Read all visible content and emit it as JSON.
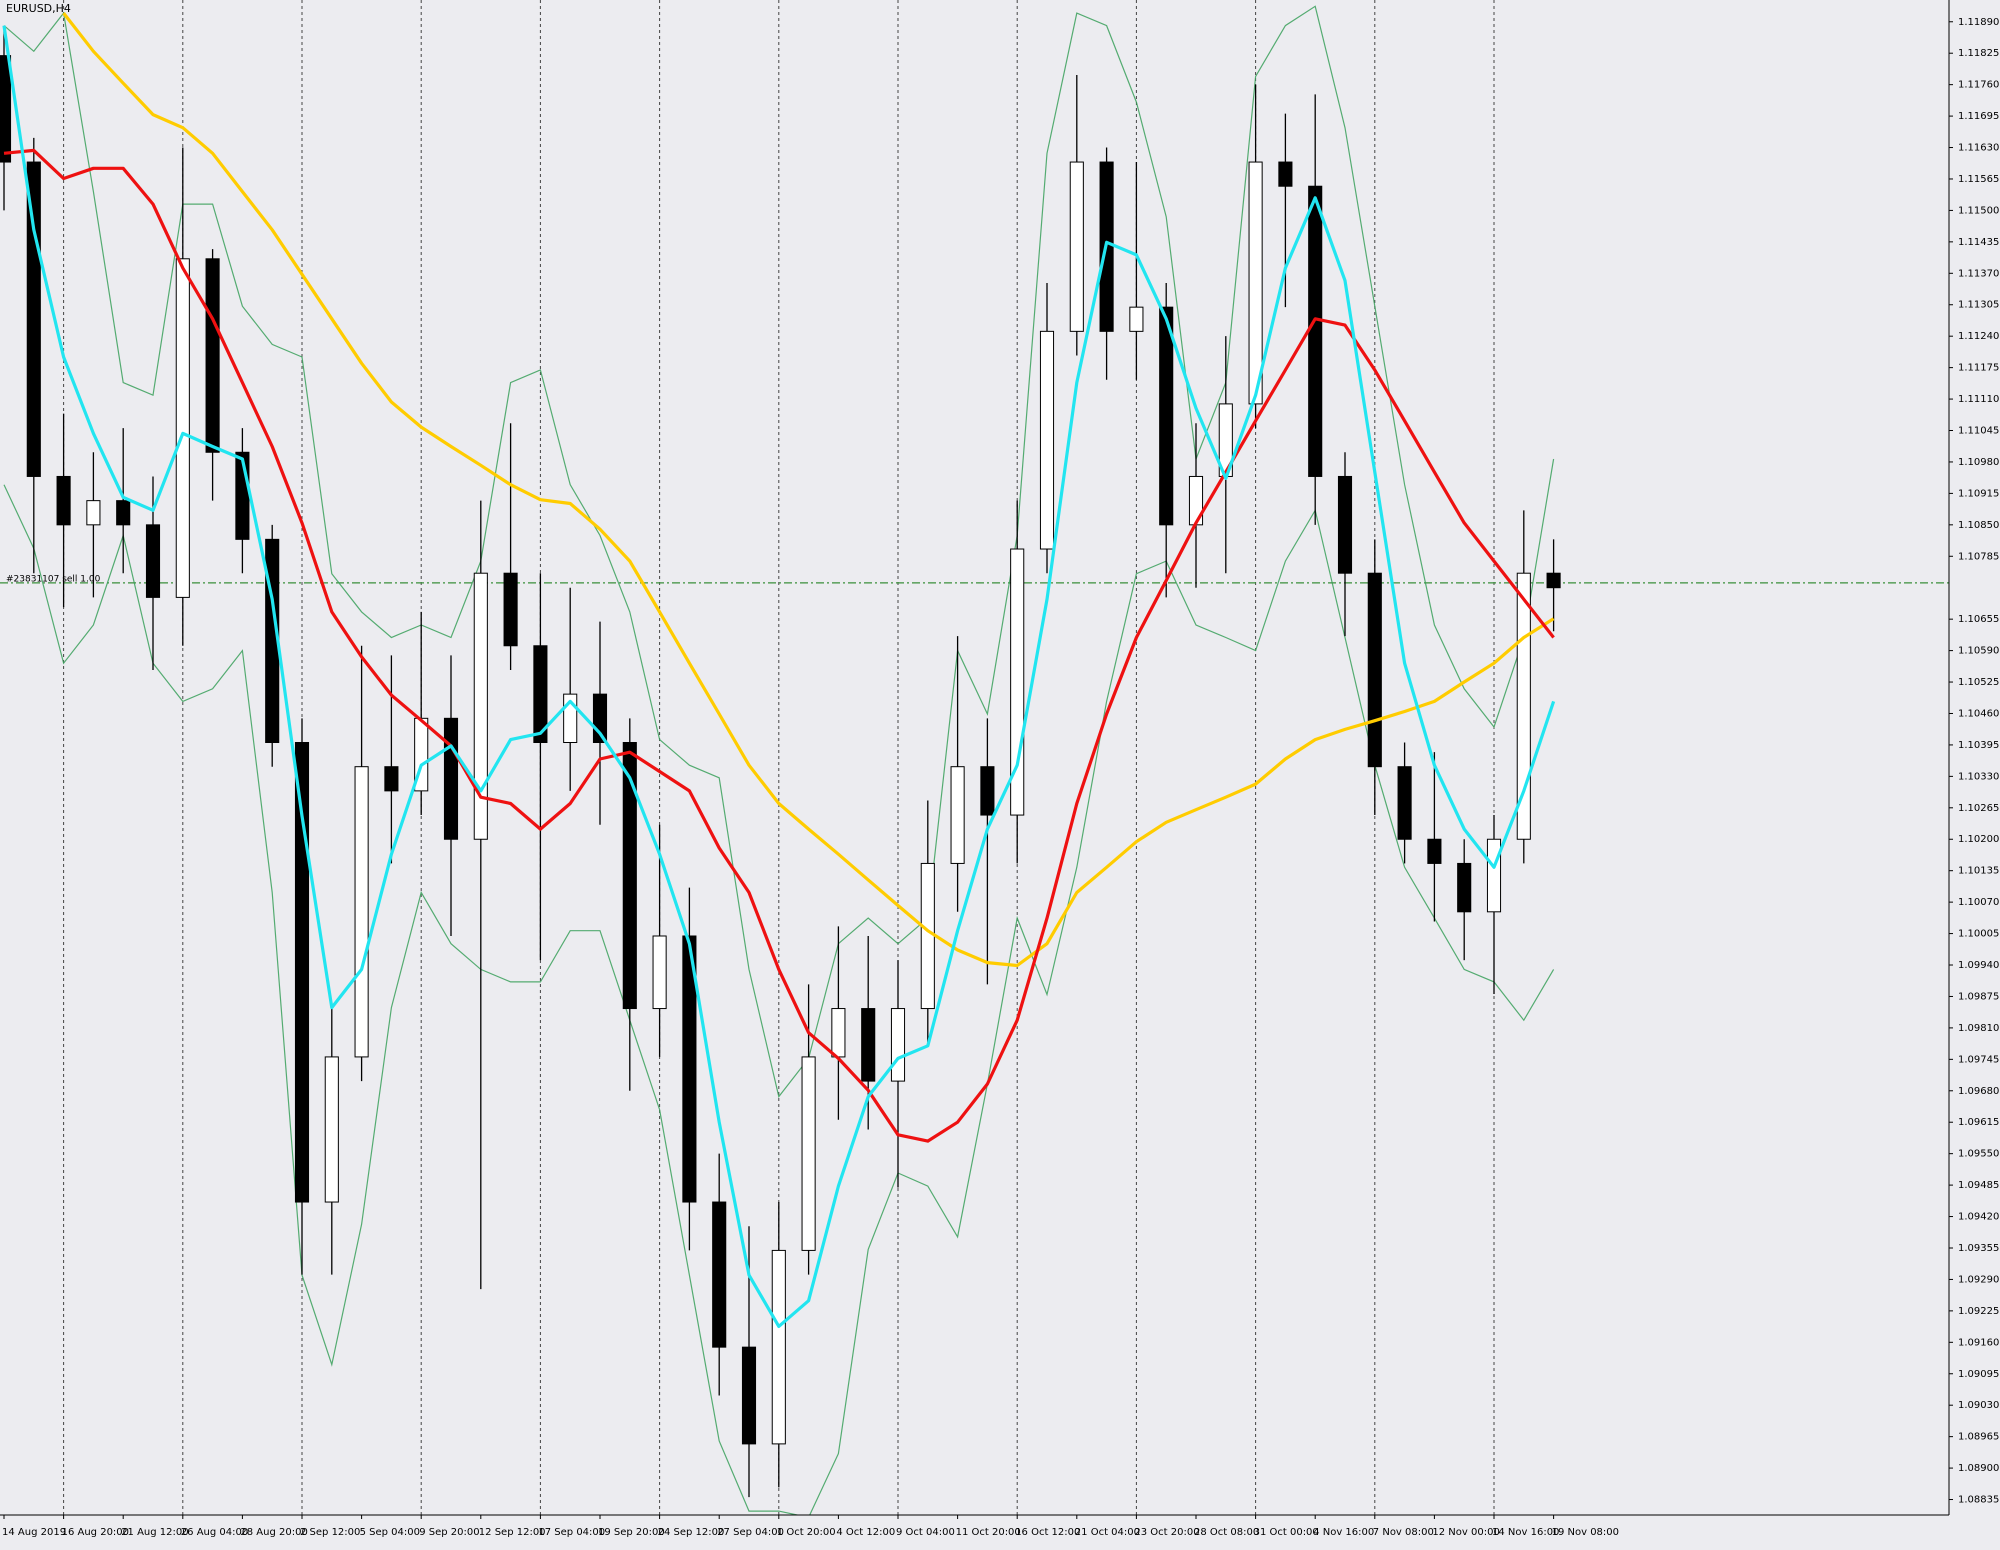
{
  "chart_data": {
    "type": "candlestick",
    "title": "EURUSD,H4",
    "categories": [
      "14 Aug 2019",
      null,
      "16 Aug 20:00",
      null,
      "21 Aug 12:00",
      null,
      "26 Aug 04:00",
      null,
      "28 Aug 20:00",
      null,
      "2 Sep 12:00",
      null,
      "5 Sep 04:00",
      null,
      "9 Sep 20:00",
      null,
      "12 Sep 12:00",
      null,
      "17 Sep 04:00",
      null,
      "19 Sep 20:00",
      null,
      "24 Sep 12:00",
      null,
      "27 Sep 04:00",
      null,
      "1 Oct 20:00",
      null,
      "4 Oct 12:00",
      null,
      "9 Oct 04:00",
      null,
      "11 Oct 20:00",
      null,
      "16 Oct 12:00",
      null,
      "21 Oct 04:00",
      null,
      "23 Oct 20:00",
      null,
      "28 Oct 08:00",
      null,
      "31 Oct 00:00",
      null,
      "4 Nov 16:00",
      null,
      "7 Nov 08:00",
      null,
      "12 Nov 00:00",
      null,
      "14 Nov 16:00",
      null,
      "19 Nov 08:00"
    ],
    "open": [
      1.1182,
      1.116,
      1.1095,
      1.1085,
      1.109,
      1.1085,
      1.107,
      1.114,
      1.11,
      1.1082,
      1.104,
      1.0945,
      1.0975,
      1.1035,
      1.103,
      1.1045,
      1.102,
      1.1075,
      1.106,
      1.104,
      1.105,
      1.104,
      1.0985,
      1.1,
      1.0945,
      1.0915,
      1.0895,
      1.0935,
      1.0975,
      1.0985,
      1.097,
      1.0985,
      1.1015,
      1.1035,
      1.1025,
      1.108,
      1.1125,
      1.116,
      1.1125,
      1.113,
      1.1085,
      1.1095,
      1.111,
      1.116,
      1.1155,
      1.1095,
      1.1075,
      1.1035,
      1.102,
      1.1015,
      1.1005,
      1.102,
      1.1075
    ],
    "high": [
      1.1187,
      1.1165,
      1.1108,
      1.11,
      1.1105,
      1.1095,
      1.1163,
      1.1142,
      1.1105,
      1.1085,
      1.1045,
      1.0985,
      1.106,
      1.1058,
      1.1067,
      1.1058,
      1.109,
      1.1106,
      1.1075,
      1.1072,
      1.1065,
      1.1045,
      1.1023,
      1.101,
      1.0955,
      1.094,
      1.0945,
      1.099,
      1.1002,
      1.1,
      1.0995,
      1.1028,
      1.1062,
      1.1045,
      1.109,
      1.1135,
      1.1178,
      1.1163,
      1.116,
      1.1135,
      1.1106,
      1.1124,
      1.1176,
      1.117,
      1.1174,
      1.11,
      1.1082,
      1.104,
      1.1038,
      1.102,
      1.1025,
      1.1088,
      1.1082
    ],
    "low": [
      1.115,
      1.1075,
      1.1068,
      1.107,
      1.1075,
      1.1055,
      1.106,
      1.109,
      1.1075,
      1.1035,
      1.093,
      1.093,
      1.097,
      1.1015,
      1.1025,
      1.1,
      1.0927,
      1.1055,
      1.0995,
      1.103,
      1.1023,
      1.0968,
      1.0975,
      1.0935,
      1.0905,
      1.0884,
      1.0886,
      1.093,
      1.0962,
      1.096,
      1.0948,
      1.0978,
      1.1005,
      1.099,
      1.1015,
      1.1075,
      1.112,
      1.1115,
      1.1115,
      1.107,
      1.1072,
      1.1075,
      1.1105,
      1.113,
      1.1085,
      1.1062,
      1.1025,
      1.1015,
      1.1003,
      1.0995,
      1.0988,
      1.1015,
      1.1063
    ],
    "close": [
      1.116,
      1.1095,
      1.1085,
      1.109,
      1.1085,
      1.107,
      1.114,
      1.11,
      1.1082,
      1.104,
      1.0945,
      1.0975,
      1.1035,
      1.103,
      1.1045,
      1.102,
      1.1075,
      1.106,
      1.104,
      1.105,
      1.104,
      1.0985,
      1.1,
      1.0945,
      1.0915,
      1.0895,
      1.0935,
      1.0975,
      1.0985,
      1.097,
      1.0985,
      1.1015,
      1.1035,
      1.1025,
      1.108,
      1.1125,
      1.116,
      1.1125,
      1.113,
      1.1085,
      1.1095,
      1.111,
      1.116,
      1.1155,
      1.1095,
      1.1075,
      1.1035,
      1.102,
      1.1015,
      1.1005,
      1.102,
      1.1075,
      1.1072
    ],
    "up_color": "#ffffff",
    "down_color": "#000000",
    "series": [
      {
        "color": "#3aa05a",
        "values": [
          1.11882,
          1.11829,
          1.11908,
          1.11539,
          1.11144,
          1.11118,
          1.11513,
          1.11513,
          1.11302,
          1.11223,
          1.11197,
          1.10749,
          1.1067,
          1.10617,
          1.10643,
          1.10617,
          1.10775,
          1.11144,
          1.1117,
          1.10933,
          1.10828,
          1.1067,
          1.10406,
          1.10353,
          1.10327,
          1.09931,
          1.09668,
          1.09747,
          1.09984,
          1.10037,
          1.09984,
          1.10037,
          1.1059,
          1.10459,
          1.10828,
          1.11618,
          1.11908,
          1.11882,
          1.11724,
          1.11487,
          1.10986,
          1.11144,
          1.11777,
          1.11882,
          1.11922,
          1.11671,
          1.11302,
          1.10933,
          1.10643,
          1.10511,
          1.10432,
          1.10617,
          1.10986
        ]
      },
      {
        "color": "#3aa05a",
        "values": [
          1.10933,
          1.10801,
          1.10564,
          1.10643,
          1.10828,
          1.10564,
          1.10485,
          1.10511,
          1.1059,
          1.1009,
          1.09299,
          1.09114,
          1.09404,
          1.09852,
          1.1009,
          1.09984,
          1.09931,
          1.09905,
          1.09905,
          1.10011,
          1.10011,
          1.09826,
          1.09641,
          1.09299,
          1.08956,
          1.08811,
          1.08811,
          1.08798,
          1.0893,
          1.09352,
          1.0951,
          1.09483,
          1.09378,
          1.09694,
          1.10037,
          1.09879,
          1.10142,
          1.10485,
          1.10749,
          1.10775,
          1.10643,
          1.10617,
          1.1059,
          1.10775,
          1.1088,
          1.10617,
          1.10353,
          1.10142,
          1.10037,
          1.09931,
          1.09905,
          1.09826,
          1.09931
        ]
      },
      {
        "color": "#ffcc00",
        "values": [
          null,
          null,
          1.11908,
          1.11829,
          1.11763,
          1.11698,
          1.11671,
          1.11618,
          1.11539,
          1.1146,
          1.11368,
          1.11276,
          1.11184,
          1.11104,
          1.11052,
          1.11012,
          1.10973,
          1.10933,
          1.10902,
          1.10894,
          1.10841,
          1.10775,
          1.1067,
          1.10564,
          1.10459,
          1.10353,
          1.10274,
          1.10221,
          1.10169,
          1.10116,
          1.10063,
          1.10011,
          1.09971,
          1.09945,
          1.09939,
          1.09984,
          1.1009,
          1.10142,
          1.10195,
          1.10235,
          1.10261,
          1.10287,
          1.10314,
          1.10366,
          1.10406,
          1.10427,
          1.10445,
          1.10464,
          1.10485,
          1.10525,
          1.10564,
          1.10617,
          1.10656
        ]
      },
      {
        "color": "#ee1111",
        "values": [
          1.11618,
          1.11624,
          1.11566,
          1.11587,
          1.11587,
          1.11513,
          1.11381,
          1.11276,
          1.11144,
          1.11012,
          1.10854,
          1.1067,
          1.10577,
          1.10498,
          1.10446,
          1.10393,
          1.10287,
          1.10274,
          1.10221,
          1.10274,
          1.10366,
          1.1038,
          1.1034,
          1.103,
          1.10182,
          1.1009,
          1.09931,
          1.098,
          1.09747,
          1.09681,
          1.09589,
          1.09576,
          1.09615,
          1.09694,
          1.09826,
          1.10037,
          1.10274,
          1.10459,
          1.10617,
          1.10735,
          1.10854,
          1.10959,
          1.11065,
          1.1117,
          1.11276,
          1.11263,
          1.1117,
          1.11065,
          1.10959,
          1.10854,
          1.10775,
          1.10696,
          1.10617
        ]
      },
      {
        "color": "#22e5f0",
        "values": [
          1.11882,
          1.1146,
          1.11197,
          1.11039,
          1.10907,
          1.1088,
          1.11039,
          1.11012,
          1.10986,
          1.10696,
          1.10248,
          1.09852,
          1.09931,
          1.10169,
          1.10353,
          1.10393,
          1.103,
          1.10406,
          1.10419,
          1.10485,
          1.10419,
          1.10327,
          1.10169,
          1.09984,
          1.09615,
          1.09299,
          1.09193,
          1.09246,
          1.09483,
          1.09668,
          1.09747,
          1.09773,
          1.10011,
          1.10221,
          1.10353,
          1.10696,
          1.11144,
          1.11434,
          1.11408,
          1.11276,
          1.11091,
          1.10946,
          1.11118,
          1.11381,
          1.11526,
          1.11355,
          1.10959,
          1.10564,
          1.10353,
          1.10221,
          1.10142,
          1.103,
          1.10485
        ]
      }
    ],
    "order_line": {
      "label": "#23831107 sell 1.00",
      "value": 1.1073,
      "color": "#3a8f3a"
    },
    "ylim": [
      1.08803,
      1.11935
    ],
    "yticks": [
      {
        "value": 1.1189,
        "label": "1.11890"
      },
      1.11825,
      {
        "value": 1.1176,
        "label": "1.11760"
      },
      1.11695,
      {
        "value": 1.1163,
        "label": "1.11630"
      },
      1.11565,
      {
        "value": 1.115,
        "label": "1.11500"
      },
      1.11435,
      {
        "value": 1.1137,
        "label": "1.11370"
      },
      1.11305,
      {
        "value": 1.1124,
        "label": "1.11240"
      },
      1.11175,
      {
        "value": 1.1111,
        "label": "1.11110"
      },
      1.11045,
      {
        "value": 1.1098,
        "label": "1.10980"
      },
      1.10915,
      {
        "value": 1.1085,
        "label": "1.10850"
      },
      1.10785,
      1.10655,
      {
        "value": 1.1059,
        "label": "1.10590"
      },
      1.10525,
      {
        "value": 1.1046,
        "label": "1.10460"
      },
      1.10395,
      {
        "value": 1.1033,
        "label": "1.10330"
      },
      1.10265,
      {
        "value": 1.102,
        "label": "1.10200"
      },
      1.10135,
      {
        "value": 1.1007,
        "label": "1.10070"
      },
      1.10005,
      {
        "value": 1.0994,
        "label": "1.09940"
      },
      1.09875,
      {
        "value": 1.0981,
        "label": "1.09810"
      },
      1.09745,
      {
        "value": 1.0968,
        "label": "1.09680"
      },
      1.09615,
      {
        "value": 1.0955,
        "label": "1.09550"
      },
      1.09485,
      {
        "value": 1.0942,
        "label": "1.09420"
      },
      1.09355,
      {
        "value": 1.0929,
        "label": "1.09290"
      },
      1.09225,
      {
        "value": 1.0916,
        "label": "1.09160"
      },
      1.09095,
      {
        "value": 1.0903,
        "label": "1.09030"
      },
      1.08965,
      {
        "value": 1.089,
        "label": "1.08900"
      },
      1.08835
    ]
  }
}
